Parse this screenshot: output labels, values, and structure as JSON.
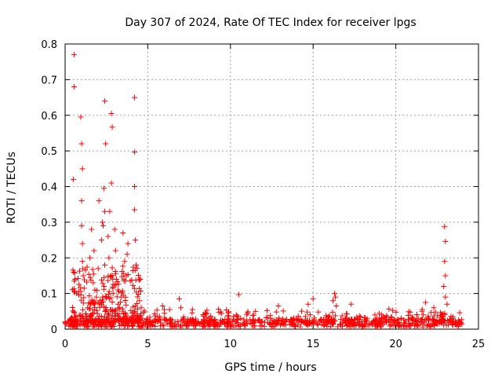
{
  "chart_data": {
    "type": "scatter",
    "title": "Day 307 of 2024, Rate Of TEC Index for receiver lpgs",
    "xlabel": "GPS time / hours",
    "ylabel": "ROTI / TECUs",
    "xlim": [
      0,
      25
    ],
    "ylim": [
      0,
      0.8
    ],
    "xticks": [
      0,
      5,
      10,
      15,
      20,
      25
    ],
    "yticks": [
      0,
      0.1,
      0.2,
      0.3,
      0.4,
      0.5,
      0.6,
      0.7,
      0.8
    ],
    "grid": true,
    "marker": "+",
    "series": [
      {
        "name": "ROTI",
        "color": "#ff0000",
        "x": [
          0.55,
          0.55,
          0.95,
          1.0,
          1.05,
          1.0,
          0.5,
          1.0,
          1.05,
          1.05,
          2.4,
          2.45,
          2.8,
          2.85,
          2.8,
          2.35,
          2.4,
          4.2,
          4.2,
          4.2,
          4.2,
          22.95,
          23.0,
          22.95,
          23.0,
          10.5,
          16.3,
          16.35,
          0.6,
          0.7,
          1.1,
          1.5,
          1.6,
          1.7,
          1.75,
          1.8,
          1.9,
          2.0,
          2.05,
          2.1,
          2.2,
          2.25,
          2.3,
          2.35,
          2.4,
          2.5,
          2.6,
          2.65,
          2.7,
          2.75,
          2.9,
          3.0,
          3.05,
          3.1,
          3.2,
          3.3,
          3.5,
          3.6,
          3.7,
          3.75,
          3.8,
          4.25,
          4.3,
          4.5,
          4.6,
          5.9,
          6.0,
          6.9,
          7.0,
          12.9,
          14.7,
          15.0,
          16.2,
          16.4,
          17.3,
          21.6,
          21.8,
          22.3,
          22.9,
          23.0,
          23.1
        ],
        "y": [
          0.77,
          0.68,
          0.595,
          0.52,
          0.45,
          0.36,
          0.42,
          0.29,
          0.24,
          0.19,
          0.64,
          0.52,
          0.605,
          0.567,
          0.41,
          0.395,
          0.33,
          0.65,
          0.497,
          0.4,
          0.335,
          0.288,
          0.246,
          0.19,
          0.15,
          0.097,
          0.1,
          0.09,
          0.14,
          0.1,
          0.15,
          0.2,
          0.28,
          0.13,
          0.22,
          0.11,
          0.09,
          0.17,
          0.36,
          0.08,
          0.25,
          0.3,
          0.29,
          0.12,
          0.18,
          0.09,
          0.26,
          0.2,
          0.33,
          0.15,
          0.1,
          0.28,
          0.22,
          0.14,
          0.07,
          0.06,
          0.27,
          0.19,
          0.15,
          0.21,
          0.24,
          0.25,
          0.18,
          0.08,
          0.06,
          0.065,
          0.055,
          0.085,
          0.06,
          0.065,
          0.07,
          0.085,
          0.08,
          0.065,
          0.07,
          0.055,
          0.075,
          0.06,
          0.12,
          0.09,
          0.07
        ]
      }
    ],
    "dense_background": {
      "x_range": [
        0,
        24
      ],
      "baseline_y": 0.02,
      "typical_max_y": 0.05
    }
  }
}
